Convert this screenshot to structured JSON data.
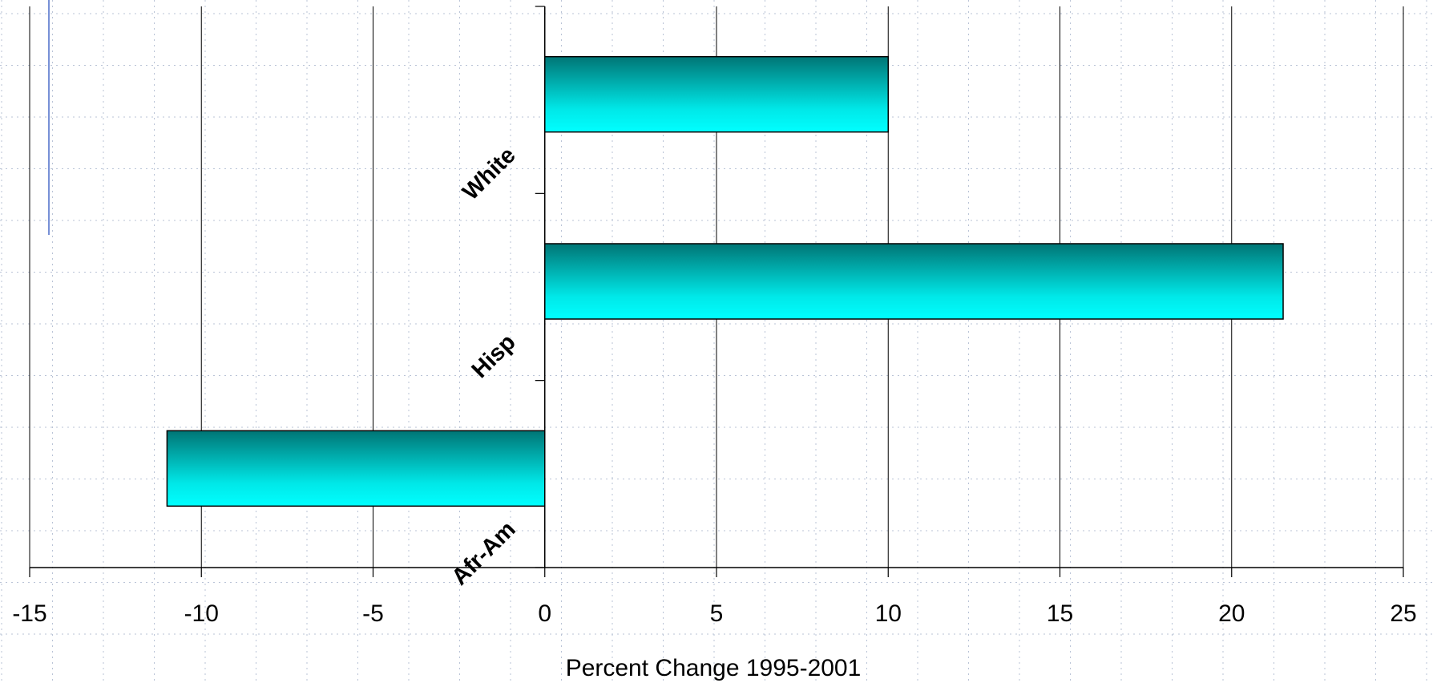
{
  "chart_data": {
    "type": "bar",
    "orientation": "horizontal",
    "title": "",
    "xlabel": "Percent Change 1995-2001",
    "ylabel": "",
    "categories": [
      "White",
      "Hisp",
      "Afr-Am"
    ],
    "values": [
      10,
      21.5,
      -11
    ],
    "xlim": [
      -15,
      25
    ],
    "xticks": [
      "-15",
      "-10",
      "-5",
      "0",
      "5",
      "10",
      "15",
      "20",
      "25"
    ],
    "grid": true,
    "legend": "none",
    "colors": {
      "bar_top": "#007575",
      "bar_bottom": "#00ffff",
      "bar_outline": "#000000",
      "grid": "#000000",
      "minor_grid": "#b9c3d6",
      "slide_accent": "#4a6cc9"
    }
  }
}
